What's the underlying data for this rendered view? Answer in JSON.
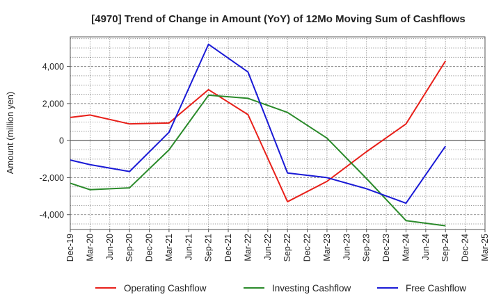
{
  "chart_data": {
    "type": "line",
    "title": "[4970]  Trend of Change in Amount (YoY) of 12Mo Moving Sum of Cashflows",
    "xlabel": "",
    "ylabel": "Amount (million yen)",
    "ylim": [
      -4800,
      5600
    ],
    "yticks": [
      -4000,
      -2000,
      0,
      2000,
      4000
    ],
    "ytick_labels": [
      "-4,000",
      "-2,000",
      "0",
      "2,000",
      "4,000"
    ],
    "categories": [
      "Dec-19",
      "Mar-20",
      "Jun-20",
      "Sep-20",
      "Dec-20",
      "Mar-21",
      "Jun-21",
      "Sep-21",
      "Dec-21",
      "Mar-22",
      "Jun-22",
      "Sep-22",
      "Dec-22",
      "Mar-23",
      "Jun-23",
      "Sep-23",
      "Dec-23",
      "Mar-24",
      "Jun-24",
      "Sep-24",
      "Dec-24",
      "Mar-25"
    ],
    "grid": true,
    "legend_position": "bottom",
    "series": [
      {
        "name": "Operating Cashflow",
        "color": "#e8201a",
        "values": [
          1250,
          1380,
          null,
          900,
          null,
          950,
          null,
          2750,
          null,
          1400,
          null,
          -3300,
          null,
          -2200,
          null,
          -600,
          null,
          900,
          null,
          4300,
          null,
          null
        ]
      },
      {
        "name": "Investing Cashflow",
        "color": "#2a8a2a",
        "values": [
          -2300,
          -2650,
          null,
          -2550,
          null,
          -500,
          null,
          2450,
          null,
          2280,
          null,
          1520,
          null,
          130,
          null,
          -2050,
          null,
          -4320,
          null,
          -4600,
          null,
          null
        ]
      },
      {
        "name": "Free Cashflow",
        "color": "#1a1ad6",
        "values": [
          -1050,
          -1300,
          null,
          -1670,
          null,
          450,
          null,
          5200,
          null,
          3700,
          null,
          -1750,
          null,
          -2000,
          null,
          -2600,
          null,
          -3380,
          null,
          -300,
          null,
          null
        ]
      }
    ]
  }
}
